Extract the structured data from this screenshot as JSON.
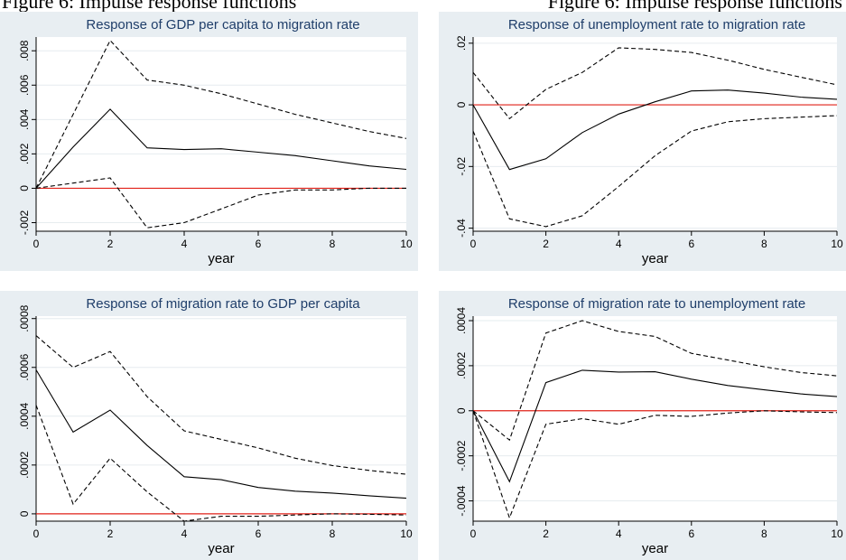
{
  "caption": {
    "left": "Figure 6: Impulse response functions",
    "right": "Figure 6: Impulse response functions"
  },
  "colors": {
    "panel_bg": "#e8eef2",
    "plot_bg": "#ffffff",
    "zero_line": "#e2231a",
    "series": "#000000",
    "title": "#1f3e6a"
  },
  "chart_data": [
    {
      "type": "line",
      "title": "Response of GDP per capita to migration rate",
      "xlabel": "year",
      "ylabel": "",
      "xlim": [
        0,
        10
      ],
      "ylim": [
        -0.0025,
        0.0088
      ],
      "xticks": [
        0,
        2,
        4,
        6,
        8,
        10
      ],
      "xtick_labels": [
        "0",
        "2",
        "4",
        "6",
        "8",
        "10"
      ],
      "yticks": [
        -0.002,
        0,
        0.002,
        0.004,
        0.006,
        0.008
      ],
      "ytick_labels": [
        "-.002",
        "0",
        ".002",
        ".004",
        ".006",
        ".008"
      ],
      "x": [
        0,
        1,
        2,
        3,
        4,
        5,
        6,
        7,
        8,
        9,
        10
      ],
      "series": [
        {
          "values": [
            0,
            0.0024,
            0.0046,
            0.00235,
            0.00225,
            0.0023,
            0.0021,
            0.0019,
            0.0016,
            0.0013,
            0.0011
          ],
          "style": "solid"
        },
        {
          "values": [
            0,
            0.0043,
            0.0086,
            0.0063,
            0.006,
            0.0055,
            0.0049,
            0.0043,
            0.0038,
            0.0033,
            0.0029
          ],
          "style": "dashed"
        },
        {
          "values": [
            0,
            0.0003,
            0.0006,
            -0.0023,
            -0.002,
            -0.0012,
            -0.0004,
            -0.0001,
            -0.0001,
            0.0,
            0.0
          ],
          "style": "dashed"
        }
      ],
      "zero_line": 0
    },
    {
      "type": "line",
      "title": "Response of unemployment rate to migration rate",
      "xlabel": "year",
      "ylabel": "",
      "xlim": [
        0,
        10
      ],
      "ylim": [
        -0.041,
        0.022
      ],
      "xticks": [
        0,
        2,
        4,
        6,
        8,
        10
      ],
      "xtick_labels": [
        "0",
        "2",
        "4",
        "6",
        "8",
        "10"
      ],
      "yticks": [
        -0.04,
        -0.02,
        0,
        0.02
      ],
      "ytick_labels": [
        "-.04",
        "-.02",
        "0",
        ".02"
      ],
      "x": [
        0,
        1,
        2,
        3,
        4,
        5,
        6,
        7,
        8,
        9,
        10
      ],
      "series": [
        {
          "values": [
            0,
            -0.021,
            -0.0175,
            -0.009,
            -0.003,
            0.001,
            0.0045,
            0.0048,
            0.0038,
            0.0025,
            0.0018
          ],
          "style": "solid"
        },
        {
          "values": [
            0.0105,
            -0.0045,
            0.005,
            0.0105,
            0.0185,
            0.018,
            0.017,
            0.0145,
            0.0115,
            0.009,
            0.0065
          ],
          "style": "dashed"
        },
        {
          "values": [
            -0.0085,
            -0.037,
            -0.0395,
            -0.036,
            -0.0265,
            -0.0165,
            -0.0085,
            -0.0055,
            -0.0045,
            -0.004,
            -0.0035
          ],
          "style": "dashed"
        }
      ],
      "zero_line": 0
    },
    {
      "type": "line",
      "title": "Response of migration rate to GDP per capita",
      "xlabel": "year",
      "ylabel": "",
      "xlim": [
        0,
        10
      ],
      "ylim": [
        -3e-05,
        0.00081
      ],
      "xticks": [
        0,
        2,
        4,
        6,
        8,
        10
      ],
      "xtick_labels": [
        "0",
        "2",
        "4",
        "6",
        "8",
        "10"
      ],
      "yticks": [
        0,
        0.0002,
        0.0004,
        0.0006,
        0.0008
      ],
      "ytick_labels": [
        "0",
        ".0002",
        ".0004",
        ".0006",
        ".0008"
      ],
      "x": [
        0,
        1,
        2,
        3,
        4,
        5,
        6,
        7,
        8,
        9,
        10
      ],
      "series": [
        {
          "values": [
            0.00059,
            0.000335,
            0.000425,
            0.00028,
            0.000152,
            0.00014,
            0.000108,
            9.3e-05,
            8.5e-05,
            7.4e-05,
            6.4e-05
          ],
          "style": "solid"
        },
        {
          "values": [
            0.00073,
            0.0006,
            0.000665,
            0.00048,
            0.00034,
            0.000305,
            0.00027,
            0.000228,
            0.000198,
            0.000178,
            0.000162
          ],
          "style": "dashed"
        },
        {
          "values": [
            0.000445,
            4e-05,
            0.000228,
            9e-05,
            -3e-05,
            -1e-05,
            -1e-05,
            -5e-06,
            0.0,
            -2e-06,
            -5e-06
          ],
          "style": "dashed"
        }
      ],
      "zero_line": 0
    },
    {
      "type": "line",
      "title": "Response of migration rate to unemployment rate",
      "xlabel": "year",
      "ylabel": "",
      "xlim": [
        0,
        10
      ],
      "ylim": [
        -0.00049,
        0.00042
      ],
      "xticks": [
        0,
        2,
        4,
        6,
        8,
        10
      ],
      "xtick_labels": [
        "0",
        "2",
        "4",
        "6",
        "8",
        "10"
      ],
      "yticks": [
        -0.0004,
        -0.0002,
        0,
        0.0002,
        0.0004
      ],
      "ytick_labels": [
        "-.0004",
        "-.0002",
        "0",
        ".0002",
        ".0004"
      ],
      "x": [
        0,
        1,
        2,
        3,
        4,
        5,
        6,
        7,
        8,
        9,
        10
      ],
      "series": [
        {
          "values": [
            0,
            -0.000315,
            0.000125,
            0.00018,
            0.000172,
            0.000173,
            0.00014,
            0.000112,
            9.3e-05,
            7.5e-05,
            6.3e-05
          ],
          "style": "solid"
        },
        {
          "values": [
            0,
            -0.00013,
            0.000345,
            0.0004,
            0.000352,
            0.00033,
            0.000255,
            0.000225,
            0.000195,
            0.00017,
            0.000155
          ],
          "style": "dashed"
        },
        {
          "values": [
            0,
            -0.000475,
            -6e-05,
            -3.5e-05,
            -6e-05,
            -2e-05,
            -2.5e-05,
            -1e-05,
            0.0,
            -5e-06,
            -8e-06
          ],
          "style": "dashed"
        }
      ],
      "zero_line": 0
    }
  ]
}
